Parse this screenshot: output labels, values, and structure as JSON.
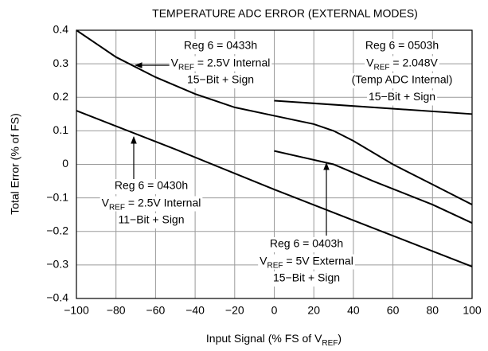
{
  "chart_data": {
    "type": "line",
    "title": "TEMPERATURE ADC ERROR (EXTERNAL MODES)",
    "xlabel": [
      "Input Signal (% FS of V",
      "REF",
      ")"
    ],
    "ylabel": "Total Error (% of FS)",
    "xlim": [
      -100,
      100
    ],
    "ylim": [
      -0.4,
      0.4
    ],
    "xticks": [
      {
        "value": -100,
        "label": "−100"
      },
      {
        "value": -80,
        "label": "−80"
      },
      {
        "value": -60,
        "label": "−60"
      },
      {
        "value": -40,
        "label": "−40"
      },
      {
        "value": -20,
        "label": "−20"
      },
      0,
      20,
      40,
      60,
      80,
      100
    ],
    "yticks": [
      0.4,
      0.3,
      0.2,
      0.1,
      0,
      {
        "value": -0.1,
        "label": "−0.1"
      },
      {
        "value": -0.2,
        "label": "−0.2"
      },
      {
        "value": -0.3,
        "label": "−0.3"
      },
      {
        "value": -0.4,
        "label": "−0.4"
      }
    ],
    "grid": true,
    "series": [
      {
        "color": "#000000",
        "x": [
          -100,
          -80,
          -60,
          -40,
          -20,
          0,
          20,
          30,
          40,
          60,
          80,
          100
        ],
        "values": [
          0.4,
          0.32,
          0.26,
          0.21,
          0.17,
          0.145,
          0.12,
          0.1,
          0.07,
          0.0,
          -0.06,
          -0.12
        ]
      },
      {
        "color": "#000000",
        "x": [
          0,
          100
        ],
        "values": [
          0.19,
          0.15
        ]
      },
      {
        "color": "#000000",
        "x": [
          -100,
          -50,
          0,
          50,
          100
        ],
        "values": [
          0.16,
          0.045,
          -0.075,
          -0.19,
          -0.305
        ]
      },
      {
        "color": "#000000",
        "x": [
          0,
          30,
          50,
          80,
          100
        ],
        "values": [
          0.04,
          0.0,
          -0.05,
          -0.12,
          -0.175
        ]
      }
    ],
    "annotations": [
      {
        "lines": [
          "Reg 6 = 0433h",
          [
            "V",
            "REF",
            " = 2.5V Internal"
          ],
          "15−Bit + Sign"
        ]
      },
      {
        "lines": [
          "Reg 6 = 0503h",
          [
            "V",
            "REF",
            " = 2.048V"
          ],
          "(Temp ADC Internal)",
          "15−Bit + Sign"
        ]
      },
      {
        "lines": [
          "Reg 6 = 0430h",
          [
            "V",
            "REF",
            " = 2.5V Internal"
          ],
          "11−Bit + Sign"
        ]
      },
      {
        "lines": [
          "Reg 6 = 0403h",
          [
            "V",
            "REF",
            " = 5V External"
          ],
          "15−Bit + Sign"
        ]
      }
    ]
  }
}
